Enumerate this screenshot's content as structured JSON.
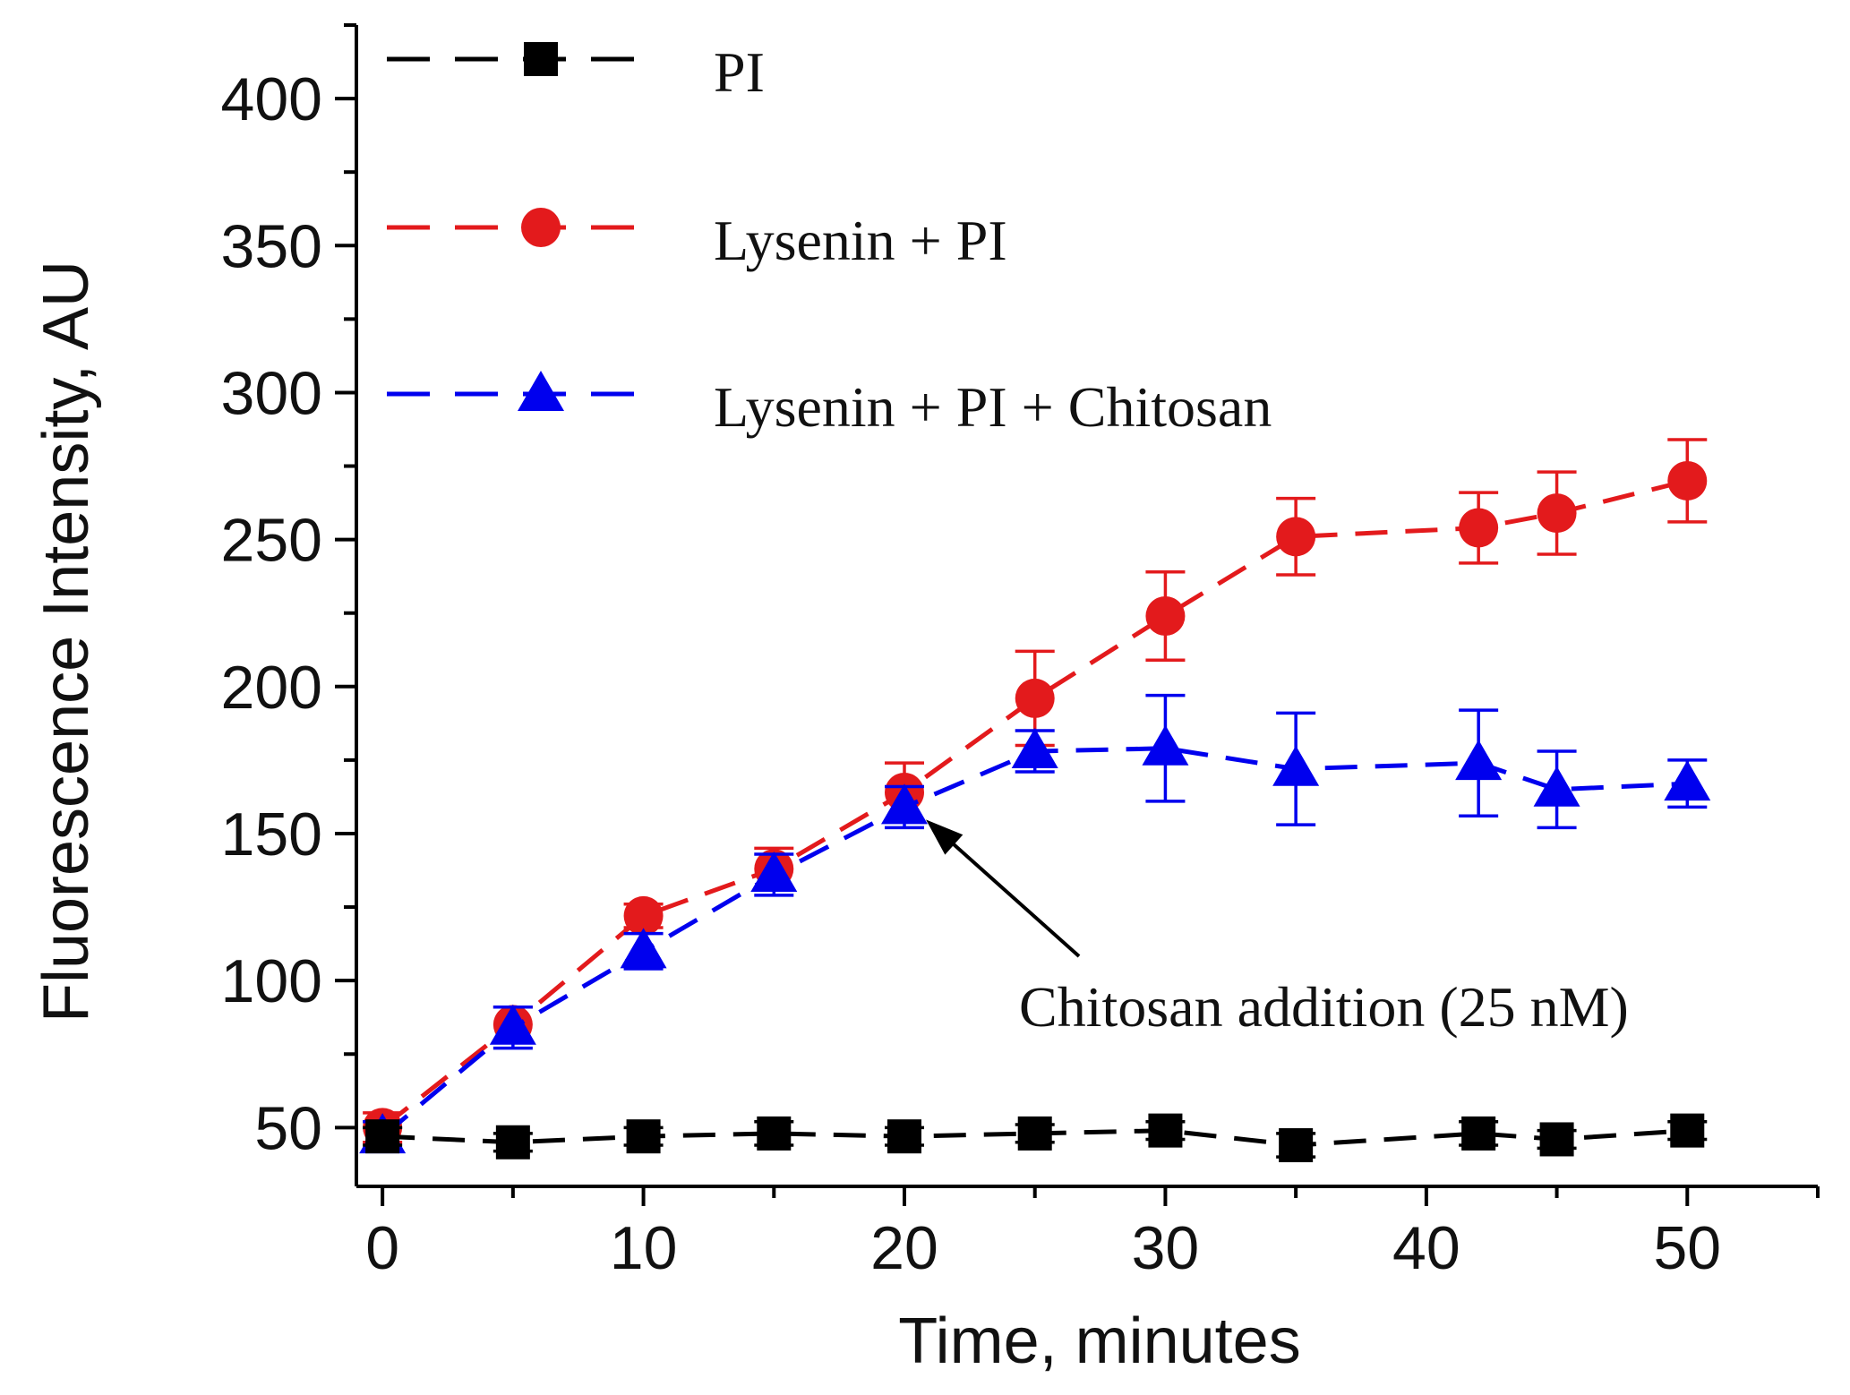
{
  "chart_data": {
    "type": "line",
    "xlabel": "Time, minutes",
    "ylabel": "Fluorescence Intensity, AU",
    "xlim": [
      -1,
      55
    ],
    "ylim": [
      30,
      425
    ],
    "x_ticks": [
      0,
      10,
      20,
      30,
      40,
      50
    ],
    "y_ticks": [
      50,
      100,
      150,
      200,
      250,
      300,
      350,
      400
    ],
    "grid": false,
    "legend_position": "top-left",
    "series": [
      {
        "name": "PI",
        "color": "#000000",
        "marker": "square",
        "x": [
          0,
          5,
          10,
          15,
          20,
          25,
          30,
          35,
          42,
          45,
          50
        ],
        "y": [
          47,
          45,
          47,
          48,
          47,
          48,
          49,
          44,
          48,
          46,
          49
        ],
        "err": [
          3,
          3,
          3,
          4,
          3,
          3,
          3,
          4,
          4,
          3,
          3
        ]
      },
      {
        "name": "Lysenin + PI",
        "color": "#e31a1c",
        "marker": "circle",
        "x": [
          0,
          5,
          10,
          15,
          20,
          25,
          30,
          35,
          42,
          45,
          50
        ],
        "y": [
          50,
          85,
          122,
          138,
          164,
          196,
          224,
          251,
          254,
          259,
          270
        ],
        "err": [
          5,
          6,
          4,
          7,
          10,
          16,
          15,
          13,
          12,
          14,
          14
        ]
      },
      {
        "name": "Lysenin + PI + Chitosan",
        "color": "#0000ee",
        "marker": "triangle",
        "x": [
          0,
          5,
          10,
          15,
          20,
          25,
          30,
          35,
          42,
          45,
          50
        ],
        "y": [
          47,
          84,
          110,
          136,
          159,
          178,
          179,
          172,
          174,
          165,
          167
        ],
        "err": [
          5,
          7,
          6,
          7,
          7,
          7,
          18,
          19,
          18,
          13,
          8
        ]
      }
    ],
    "annotations": [
      {
        "text": "Chitosan addition (25 nM)",
        "points_to": {
          "x": 20,
          "y": 159
        }
      }
    ]
  }
}
